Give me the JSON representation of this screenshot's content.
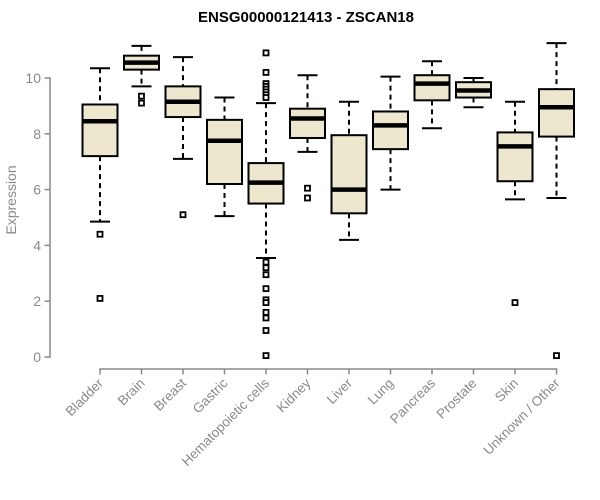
{
  "chart_data": {
    "type": "boxplot",
    "title": "ENSG00000121413 - ZSCAN18",
    "ylabel": "Expression",
    "xlabel": "",
    "yticks": [
      0,
      2,
      4,
      6,
      8,
      10
    ],
    "ylim": [
      0,
      11.4
    ],
    "grid": false,
    "legend": "none",
    "categories": [
      "Bladder",
      "Brain",
      "Breast",
      "Gastric",
      "Hematopoietic cells",
      "Kidney",
      "Liver",
      "Lung",
      "Pancreas",
      "Prostate",
      "Skin",
      "Unknown / Other"
    ],
    "boxes": [
      {
        "category": "Bladder",
        "whisker_low": 4.85,
        "q1": 7.2,
        "median": 8.45,
        "q3": 9.05,
        "whisker_high": 10.35,
        "outliers": [
          4.4,
          2.1
        ]
      },
      {
        "category": "Brain",
        "whisker_low": 9.7,
        "q1": 10.3,
        "median": 10.55,
        "q3": 10.8,
        "whisker_high": 11.15,
        "outliers": [
          9.35,
          9.1
        ]
      },
      {
        "category": "Breast",
        "whisker_low": 7.1,
        "q1": 8.6,
        "median": 9.15,
        "q3": 9.7,
        "whisker_high": 10.75,
        "outliers": [
          5.1
        ]
      },
      {
        "category": "Gastric",
        "whisker_low": 5.05,
        "q1": 6.2,
        "median": 7.75,
        "q3": 8.5,
        "whisker_high": 9.3,
        "outliers": []
      },
      {
        "category": "Hematopoietic cells",
        "whisker_low": 3.55,
        "q1": 5.5,
        "median": 6.25,
        "q3": 6.95,
        "whisker_high": 9.1,
        "outliers": [
          10.9,
          10.2,
          9.8,
          9.7,
          9.6,
          9.5,
          9.4,
          9.3,
          3.4,
          3.2,
          2.95,
          2.45,
          2.05,
          1.95,
          1.6,
          1.4,
          0.95,
          0.05
        ]
      },
      {
        "category": "Kidney",
        "whisker_low": 7.35,
        "q1": 7.85,
        "median": 8.55,
        "q3": 8.9,
        "whisker_high": 10.1,
        "outliers": [
          6.05,
          5.7
        ]
      },
      {
        "category": "Liver",
        "whisker_low": 4.2,
        "q1": 5.15,
        "median": 6.0,
        "q3": 7.95,
        "whisker_high": 9.15,
        "outliers": []
      },
      {
        "category": "Lung",
        "whisker_low": 6.0,
        "q1": 7.45,
        "median": 8.3,
        "q3": 8.8,
        "whisker_high": 10.05,
        "outliers": []
      },
      {
        "category": "Pancreas",
        "whisker_low": 8.2,
        "q1": 9.2,
        "median": 9.8,
        "q3": 10.1,
        "whisker_high": 10.6,
        "outliers": []
      },
      {
        "category": "Prostate",
        "whisker_low": 8.95,
        "q1": 9.3,
        "median": 9.55,
        "q3": 9.85,
        "whisker_high": 10.0,
        "outliers": []
      },
      {
        "category": "Skin",
        "whisker_low": 5.65,
        "q1": 6.3,
        "median": 7.55,
        "q3": 8.05,
        "whisker_high": 9.15,
        "outliers": [
          1.95
        ]
      },
      {
        "category": "Unknown / Other",
        "whisker_low": 5.7,
        "q1": 7.9,
        "median": 8.95,
        "q3": 9.6,
        "whisker_high": 11.25,
        "outliers": [
          0.05
        ]
      }
    ],
    "colors": {
      "box_fill": "#ECE7CD",
      "box_stroke": "#000000",
      "median": "#000000",
      "whisker": "#000000",
      "outlier_stroke": "#000000",
      "outlier_fill": "#ffffff",
      "axis": "#8a8a8a",
      "title": "#000000",
      "background": "#ffffff"
    }
  }
}
